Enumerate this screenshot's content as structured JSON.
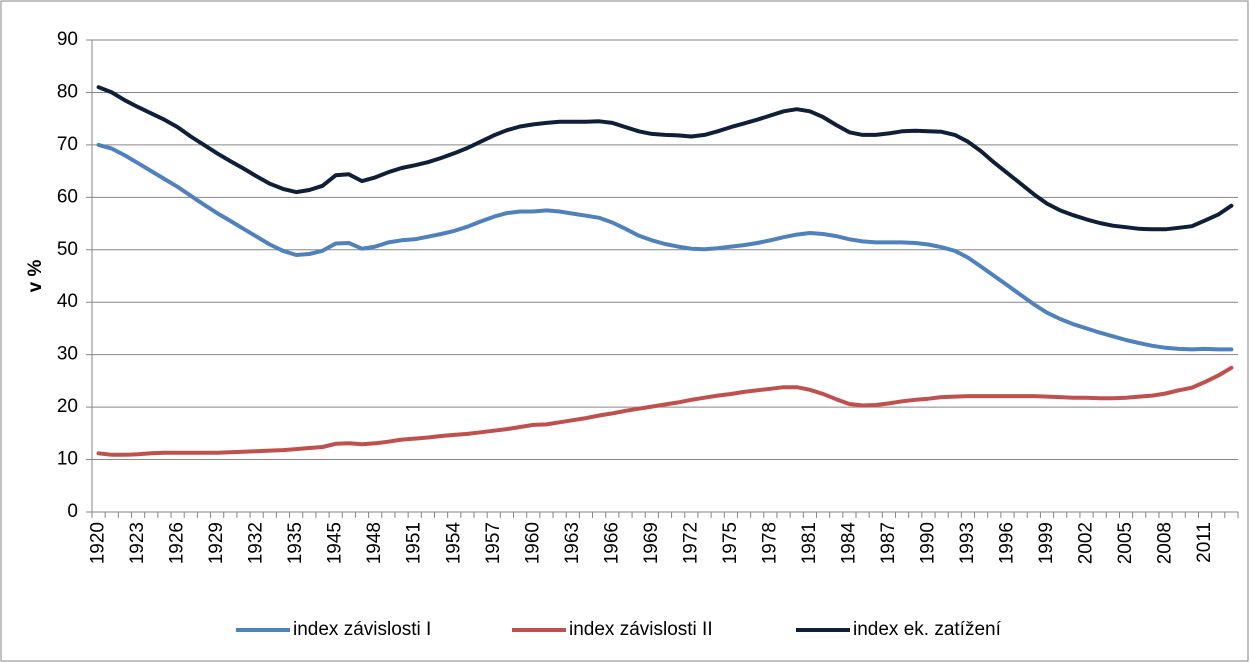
{
  "chart_data": {
    "type": "line",
    "y_label": "v %",
    "categories": [
      "1920",
      null,
      null,
      "1923",
      null,
      null,
      "1926",
      null,
      null,
      "1929",
      null,
      null,
      "1932",
      null,
      null,
      "1935",
      null,
      null,
      "1945",
      null,
      null,
      "1948",
      null,
      null,
      "1951",
      null,
      null,
      "1954",
      null,
      null,
      "1957",
      null,
      null,
      "1960",
      null,
      null,
      "1963",
      null,
      null,
      "1966",
      null,
      null,
      "1969",
      null,
      null,
      "1972",
      null,
      null,
      "1975",
      null,
      null,
      "1978",
      null,
      null,
      "1981",
      null,
      null,
      "1984",
      null,
      null,
      "1987",
      null,
      null,
      "1990",
      null,
      null,
      "1993",
      null,
      null,
      "1996",
      null,
      null,
      "1999",
      null,
      null,
      "2002",
      null,
      null,
      "2005",
      null,
      null,
      "2008",
      null,
      null,
      "2011",
      null,
      null
    ],
    "series": [
      {
        "name": "index závislosti I",
        "color": "#4f81bd",
        "values": [
          70,
          69.3,
          68,
          66.5,
          65,
          63.5,
          62,
          60.3,
          58.6,
          57,
          55.5,
          54,
          52.5,
          51,
          49.8,
          49,
          49.2,
          49.8,
          51.2,
          51.3,
          50.2,
          50.6,
          51.4,
          51.8,
          52,
          52.5,
          53,
          53.6,
          54.4,
          55.4,
          56.3,
          57,
          57.3,
          57.3,
          57.5,
          57.3,
          56.9,
          56.5,
          56.1,
          55.2,
          54,
          52.7,
          51.8,
          51.1,
          50.6,
          50.2,
          50.1,
          50.3,
          50.6,
          50.9,
          51.3,
          51.8,
          52.4,
          52.9,
          53.2,
          53,
          52.6,
          52,
          51.6,
          51.4,
          51.4,
          51.4,
          51.3,
          51,
          50.5,
          49.8,
          48.5,
          46.8,
          45,
          43.2,
          41.4,
          39.6,
          38,
          36.8,
          35.8,
          35,
          34.2,
          33.5,
          32.8,
          32.2,
          31.7,
          31.3,
          31.1,
          31,
          31.1,
          31,
          31
        ]
      },
      {
        "name": "index závislosti II",
        "color": "#c0504d",
        "values": [
          11.2,
          10.9,
          10.9,
          11,
          11.2,
          11.3,
          11.3,
          11.3,
          11.3,
          11.3,
          11.4,
          11.5,
          11.6,
          11.7,
          11.8,
          12,
          12.2,
          12.4,
          13,
          13.1,
          12.9,
          13.1,
          13.4,
          13.8,
          14,
          14.2,
          14.5,
          14.7,
          14.9,
          15.2,
          15.5,
          15.8,
          16.2,
          16.6,
          16.7,
          17.1,
          17.5,
          17.9,
          18.4,
          18.8,
          19.3,
          19.7,
          20.1,
          20.5,
          20.9,
          21.4,
          21.8,
          22.2,
          22.5,
          22.9,
          23.2,
          23.5,
          23.8,
          23.8,
          23.3,
          22.5,
          21.5,
          20.6,
          20.3,
          20.4,
          20.7,
          21.1,
          21.4,
          21.6,
          21.9,
          22,
          22.1,
          22.1,
          22.1,
          22.1,
          22.1,
          22.1,
          22,
          21.9,
          21.8,
          21.8,
          21.7,
          21.7,
          21.8,
          22,
          22.2,
          22.6,
          23.2,
          23.7,
          24.8,
          26,
          27.5
        ]
      },
      {
        "name": "index ek. zatížení",
        "color": "#0f1f38",
        "values": [
          81,
          80,
          78.5,
          77.2,
          76,
          74.8,
          73.4,
          71.6,
          70,
          68.4,
          66.9,
          65.5,
          64,
          62.6,
          61.6,
          61,
          61.4,
          62.2,
          64.2,
          64.4,
          63.1,
          63.8,
          64.8,
          65.6,
          66.1,
          66.7,
          67.5,
          68.4,
          69.4,
          70.6,
          71.8,
          72.8,
          73.5,
          73.9,
          74.2,
          74.4,
          74.4,
          74.4,
          74.5,
          74.2,
          73.4,
          72.6,
          72.1,
          71.9,
          71.8,
          71.6,
          71.9,
          72.6,
          73.4,
          74.1,
          74.8,
          75.6,
          76.4,
          76.8,
          76.4,
          75.3,
          73.8,
          72.4,
          71.9,
          71.9,
          72.2,
          72.6,
          72.7,
          72.6,
          72.5,
          71.9,
          70.6,
          68.8,
          66.6,
          64.6,
          62.6,
          60.6,
          58.8,
          57.5,
          56.6,
          55.8,
          55.1,
          54.6,
          54.3,
          54,
          53.9,
          53.9,
          54.2,
          54.5,
          55.6,
          56.7,
          58.4
        ]
      }
    ],
    "ylim": [
      0,
      90
    ],
    "yticks": [
      0,
      10,
      20,
      30,
      40,
      50,
      60,
      70,
      80,
      90
    ],
    "grid": true,
    "legend": "bottom"
  }
}
